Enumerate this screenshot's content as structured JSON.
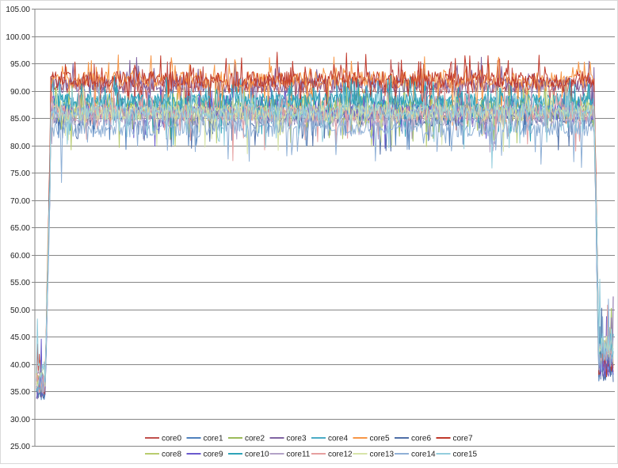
{
  "chart_data": {
    "type": "line",
    "title": "",
    "xlabel": "",
    "ylabel": "",
    "ylim": [
      25,
      105
    ],
    "yticks": [
      "25.00",
      "30.00",
      "35.00",
      "40.00",
      "45.00",
      "50.00",
      "55.00",
      "60.00",
      "65.00",
      "70.00",
      "75.00",
      "80.00",
      "85.00",
      "90.00",
      "95.00",
      "100.00",
      "105.00"
    ],
    "grid": "horizontal",
    "legend_position": "bottom",
    "n_samples": 600,
    "phases": {
      "idle_start_end": 0.015,
      "ramp_up_end": 0.025,
      "load_end": 0.967,
      "ramp_down_end": 0.975
    },
    "series": [
      {
        "name": "core0",
        "color": "#c0504d",
        "idle": 36,
        "load": 91,
        "drop": 40
      },
      {
        "name": "core1",
        "color": "#4f81bd",
        "idle": 35,
        "load": 86,
        "drop": 39
      },
      {
        "name": "core2",
        "color": "#9bbb59",
        "idle": 36,
        "load": 87,
        "drop": 42
      },
      {
        "name": "core3",
        "color": "#8064a2",
        "idle": 35,
        "load": 91,
        "drop": 40
      },
      {
        "name": "core4",
        "color": "#4bacc6",
        "idle": 36,
        "load": 88,
        "drop": 43
      },
      {
        "name": "core5",
        "color": "#f79646",
        "idle": 37,
        "load": 92,
        "drop": 41
      },
      {
        "name": "core6",
        "color": "#4f6fa8",
        "idle": 35,
        "load": 85,
        "drop": 39
      },
      {
        "name": "core7",
        "color": "#c0392b",
        "idle": 36,
        "load": 92,
        "drop": 40
      },
      {
        "name": "core8",
        "color": "#b8cc6e",
        "idle": 37,
        "load": 86,
        "drop": 42
      },
      {
        "name": "core9",
        "color": "#6a5acd",
        "idle": 35,
        "load": 86,
        "drop": 40
      },
      {
        "name": "core10",
        "color": "#2ea3b8",
        "idle": 36,
        "load": 88,
        "drop": 43
      },
      {
        "name": "core11",
        "color": "#b3a2c7",
        "idle": 37,
        "load": 85,
        "drop": 44
      },
      {
        "name": "core12",
        "color": "#e6a0a0",
        "idle": 36,
        "load": 86,
        "drop": 42
      },
      {
        "name": "core13",
        "color": "#d7e4a8",
        "idle": 37,
        "load": 86,
        "drop": 43
      },
      {
        "name": "core14",
        "color": "#8fb0d6",
        "idle": 36,
        "load": 83,
        "drop": 41
      },
      {
        "name": "core15",
        "color": "#93cddd",
        "idle": 38,
        "load": 86,
        "drop": 44
      }
    ]
  }
}
